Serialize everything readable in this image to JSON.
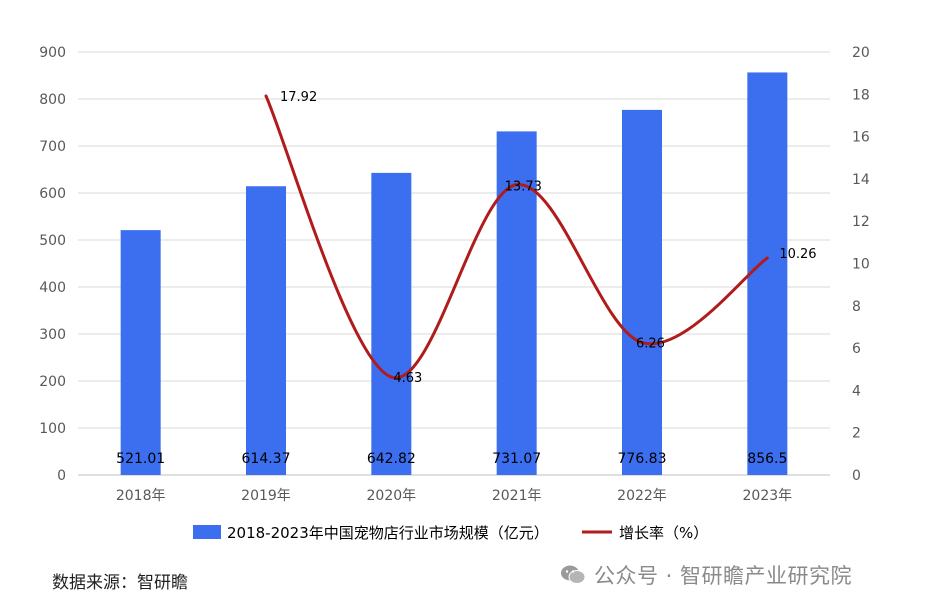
{
  "chart_data": {
    "type": "bar+line",
    "categories": [
      "2018年",
      "2019年",
      "2020年",
      "2021年",
      "2022年",
      "2023年"
    ],
    "series": [
      {
        "name": "2018-2023年中国宠物店行业市场规模（亿元）",
        "type": "bar",
        "axis": "left",
        "color": "#3b6ff0",
        "values": [
          521.01,
          614.37,
          642.82,
          731.07,
          776.83,
          856.5
        ],
        "labels": [
          "521.01",
          "614.37",
          "642.82",
          "731.07",
          "776.83",
          "856.5"
        ]
      },
      {
        "name": "增长率（%）",
        "type": "line",
        "axis": "right",
        "color": "#b01c1c",
        "smooth": true,
        "values": [
          null,
          17.92,
          4.63,
          13.73,
          6.26,
          10.26
        ],
        "labels": [
          "",
          "17.92",
          "4.63",
          "13.73",
          "6.26",
          "10.26"
        ]
      }
    ],
    "y_left": {
      "min": 0,
      "max": 900,
      "step": 100
    },
    "y_right": {
      "min": 0,
      "max": 20,
      "step": 2
    },
    "grid": true,
    "legend_position": "bottom"
  },
  "source_text": "数据来源：智研瞻",
  "watermark": {
    "icon": "wechat-icon",
    "text": "公众号 · 智研瞻产业研究院"
  }
}
